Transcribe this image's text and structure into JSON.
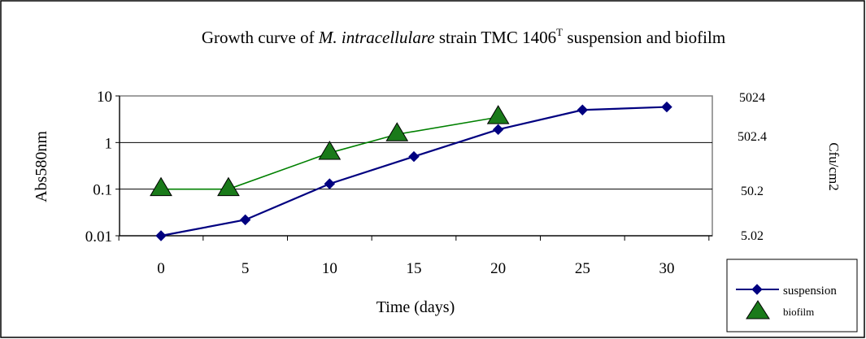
{
  "chart_data": {
    "type": "line",
    "title": {
      "prefix": "Growth curve of ",
      "species": "M. intracellulare",
      "mid": " strain TMC 1406",
      "sup": "T",
      "suffix": " suspension and biofilm"
    },
    "xlabel": "Time (days)",
    "ylabel": "Abs580nm",
    "y2label": "Cfu/cm2",
    "x_ticks": [
      "0",
      "5",
      "10",
      "15",
      "20",
      "25",
      "30"
    ],
    "x_values": [
      0,
      5,
      10,
      15,
      20,
      25,
      30
    ],
    "y_scale": "log",
    "ylim": [
      0.01,
      10
    ],
    "y_ticks": [
      {
        "value": 10,
        "label": "10"
      },
      {
        "value": 1,
        "label": "1"
      },
      {
        "value": 0.1,
        "label": "0.1"
      },
      {
        "value": 0.01,
        "label": "0.01"
      }
    ],
    "y2_ticks": [
      {
        "value": 5024,
        "label": "5024"
      },
      {
        "value": 502.4,
        "label": "502.4"
      },
      {
        "value": 50.2,
        "label": "50.2"
      },
      {
        "value": 5.02,
        "label": "5.02"
      }
    ],
    "grid": "horizontal",
    "legend_position": "bottom-right",
    "series": [
      {
        "name": "suspension",
        "color": "#000080",
        "marker": "diamond",
        "axis": "left",
        "x": [
          0,
          5,
          10,
          15,
          20,
          25,
          30
        ],
        "y": [
          0.01,
          0.022,
          0.13,
          0.5,
          1.9,
          5.0,
          5.8
        ]
      },
      {
        "name": "biofilm",
        "color": "#008000",
        "marker_fill": "#1a7a1a",
        "marker": "triangle",
        "axis": "left",
        "x": [
          0,
          4,
          10,
          14,
          20
        ],
        "y": [
          0.1,
          0.1,
          0.6,
          1.5,
          3.5
        ]
      }
    ]
  }
}
